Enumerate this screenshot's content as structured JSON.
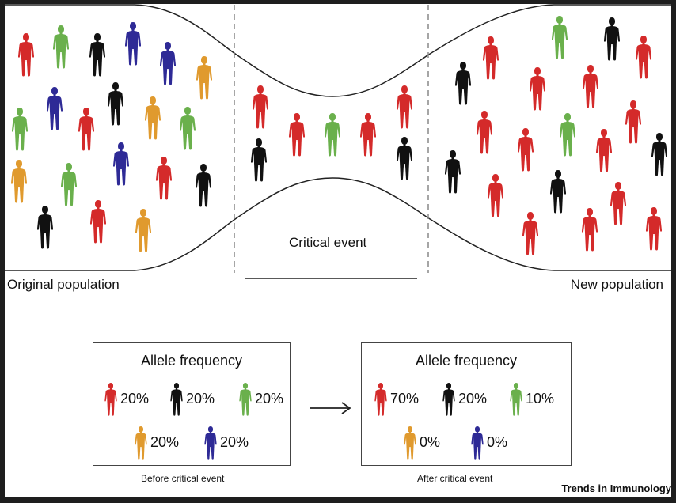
{
  "colors": {
    "red": "#d42a2a",
    "black": "#111111",
    "green": "#6ab04c",
    "orange": "#e09a2e",
    "blue": "#2e2a96"
  },
  "labels": {
    "original": "Original population",
    "new": "New population",
    "critical_event": "Critical event"
  },
  "before": {
    "title": "Allele frequency",
    "caption": "Before critical event",
    "items": [
      {
        "color": "red",
        "value": "20%"
      },
      {
        "color": "black",
        "value": "20%"
      },
      {
        "color": "green",
        "value": "20%"
      },
      {
        "color": "orange",
        "value": "20%"
      },
      {
        "color": "blue",
        "value": "20%"
      }
    ]
  },
  "after": {
    "title": "Allele frequency",
    "caption": "After critical event",
    "items": [
      {
        "color": "red",
        "value": "70%"
      },
      {
        "color": "black",
        "value": "20%"
      },
      {
        "color": "green",
        "value": "10%"
      },
      {
        "color": "orange",
        "value": "0%"
      },
      {
        "color": "blue",
        "value": "0%"
      }
    ]
  },
  "credit": "Trends in Immunology"
}
